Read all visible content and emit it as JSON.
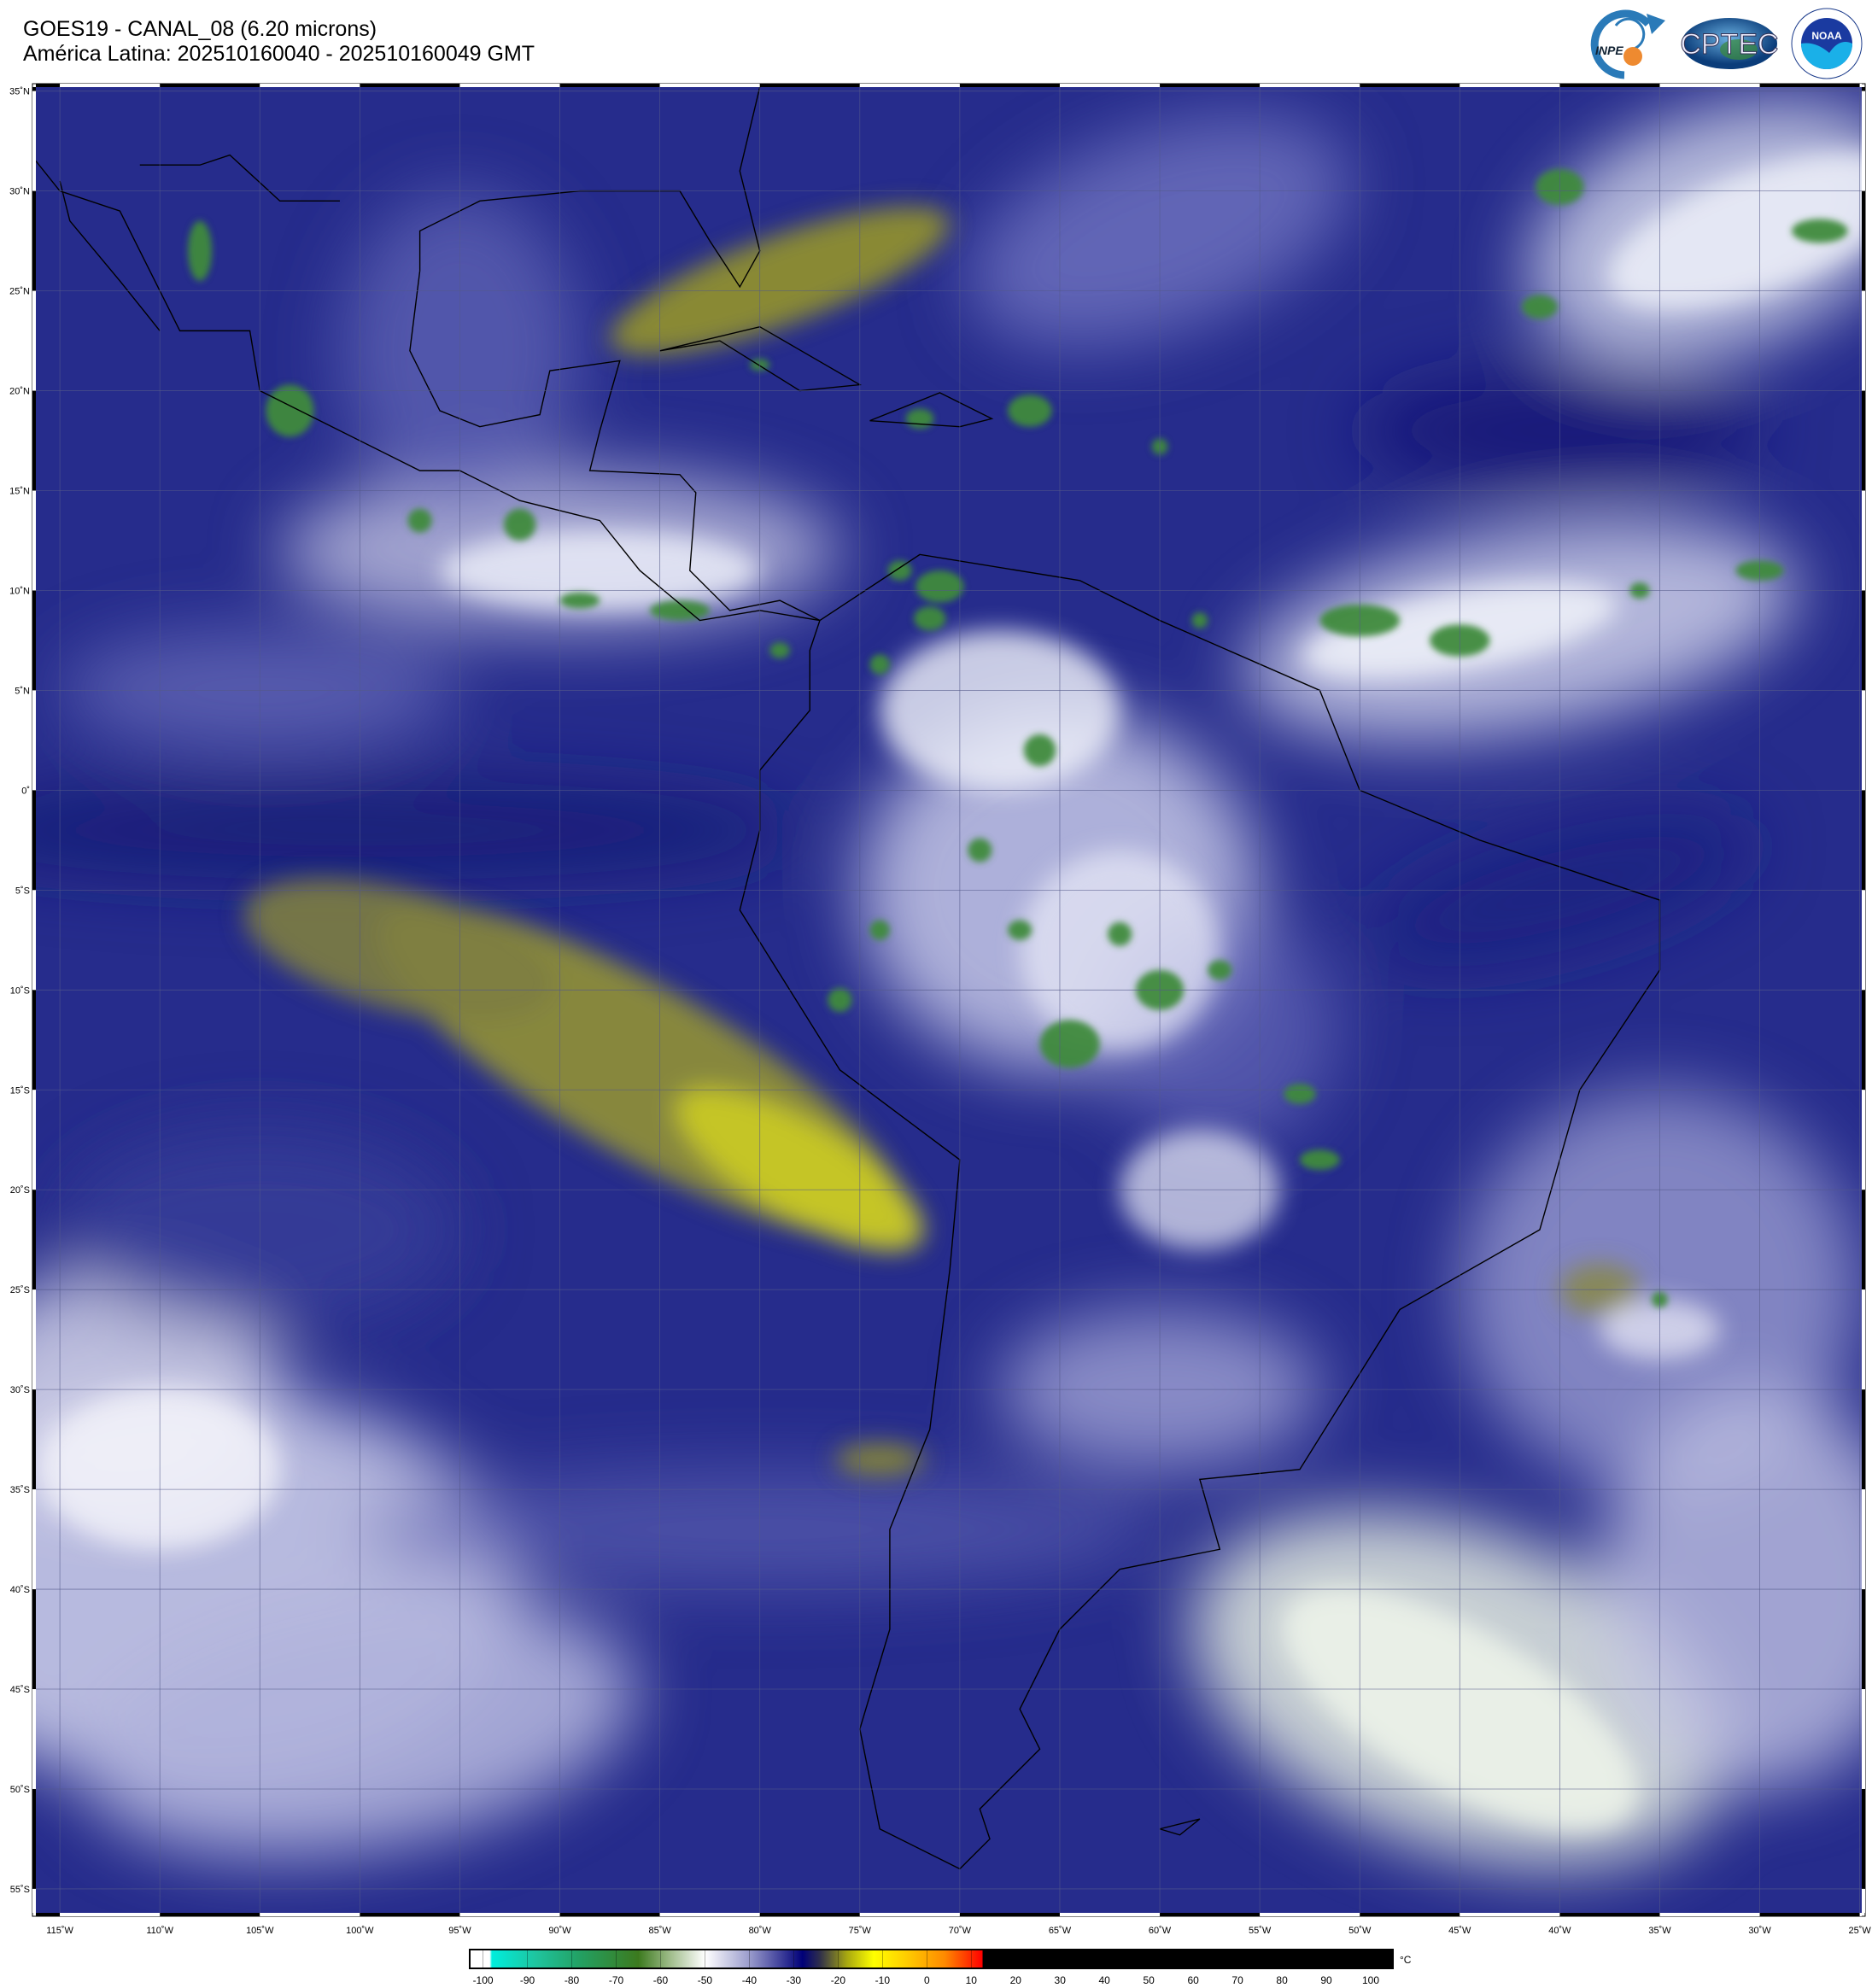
{
  "header": {
    "title_line1": "GOES19 - CANAL_08 (6.20 microns)",
    "title_line2": "América Latina: 202510160040 - 202510160049 GMT"
  },
  "logos": [
    {
      "name": "INPE",
      "text": "INPE"
    },
    {
      "name": "CPTEC",
      "text": "CPTEC"
    },
    {
      "name": "NOAA",
      "text": "NOAA",
      "ring_text": "NATIONAL OCEANIC AND ATMOSPHERIC ADMINISTRATION · U.S. DEPARTMENT OF COMMERCE"
    }
  ],
  "map": {
    "extent": {
      "lon_min": -116.2,
      "lon_max": -24.9,
      "lat_min": -56.2,
      "lat_max": 35.2
    },
    "lon_labels": [
      "115˚W",
      "110˚W",
      "105˚W",
      "100˚W",
      "95˚W",
      "90˚W",
      "85˚W",
      "80˚W",
      "75˚W",
      "70˚W",
      "65˚W",
      "60˚W",
      "55˚W",
      "50˚W",
      "45˚W",
      "40˚W",
      "35˚W",
      "30˚W",
      "25˚W"
    ],
    "lat_labels": [
      "35˚N",
      "30˚N",
      "25˚N",
      "20˚N",
      "15˚N",
      "10˚N",
      "5˚N",
      "0˚",
      "5˚S",
      "10˚S",
      "15˚S",
      "20˚S",
      "25˚S",
      "30˚S",
      "35˚S",
      "40˚S",
      "45˚S",
      "50˚S",
      "55˚S"
    ],
    "grid": true
  },
  "colorbar": {
    "unit": "°C",
    "ticks": [
      "-100",
      "-90",
      "-80",
      "-70",
      "-60",
      "-50",
      "-40",
      "-30",
      "-20",
      "-10",
      "0",
      "10",
      "20",
      "30",
      "40",
      "50",
      "60",
      "70",
      "80",
      "90",
      "100"
    ],
    "range": [
      -103,
      105
    ],
    "stops": [
      {
        "value": -103,
        "color": "#ffffff"
      },
      {
        "value": -98.5,
        "color": "#ffffff"
      },
      {
        "value": -98,
        "color": "#00eedd"
      },
      {
        "value": -88,
        "color": "#1fc49e"
      },
      {
        "value": -78,
        "color": "#23a062"
      },
      {
        "value": -65,
        "color": "#3c7a1e"
      },
      {
        "value": -58,
        "color": "#9dbb88"
      },
      {
        "value": -50,
        "color": "#ffffff"
      },
      {
        "value": -40,
        "color": "#9a9ccc"
      },
      {
        "value": -28,
        "color": "#000078"
      },
      {
        "value": -24,
        "color": "#30304a"
      },
      {
        "value": -18,
        "color": "#a8a810"
      },
      {
        "value": -12,
        "color": "#ffff00"
      },
      {
        "value": -5,
        "color": "#ffd000"
      },
      {
        "value": 4,
        "color": "#ff8a00"
      },
      {
        "value": 12.5,
        "color": "#ff0000"
      },
      {
        "value": 12.6,
        "color": "#000000"
      },
      {
        "value": 105,
        "color": "#000000"
      }
    ]
  }
}
